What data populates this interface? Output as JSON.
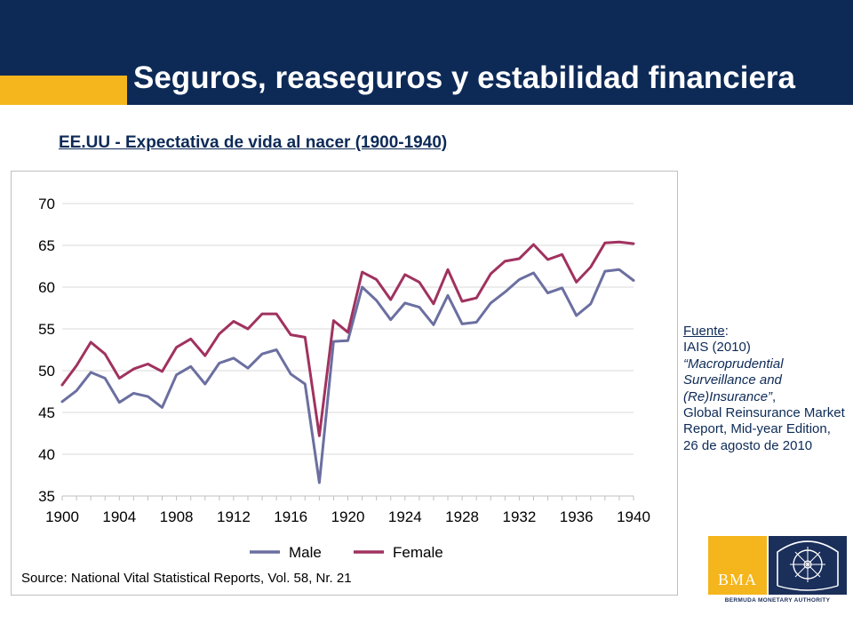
{
  "header": {
    "title": "Seguros, reaseguros y estabilidad financiera",
    "accent_color": "#f5b51c",
    "background_color": "#0d2a57"
  },
  "subtitle": "EE.UU - Expectativa de vida al nacer (1900-1940)",
  "chart_data": {
    "type": "line",
    "title": "",
    "xlabel": "",
    "ylabel": "",
    "x": [
      1900,
      1901,
      1902,
      1903,
      1904,
      1905,
      1906,
      1907,
      1908,
      1909,
      1910,
      1911,
      1912,
      1913,
      1914,
      1915,
      1916,
      1917,
      1918,
      1919,
      1920,
      1921,
      1922,
      1923,
      1924,
      1925,
      1926,
      1927,
      1928,
      1929,
      1930,
      1931,
      1932,
      1933,
      1934,
      1935,
      1936,
      1937,
      1938,
      1939,
      1940
    ],
    "series": [
      {
        "name": "Male",
        "color": "#6b6fa0",
        "values": [
          46.3,
          47.6,
          49.8,
          49.1,
          46.2,
          47.3,
          46.9,
          45.6,
          49.5,
          50.5,
          48.4,
          50.9,
          51.5,
          50.3,
          52.0,
          52.5,
          49.6,
          48.4,
          36.6,
          53.5,
          53.6,
          60.0,
          58.4,
          56.1,
          58.1,
          57.6,
          55.5,
          59.0,
          55.6,
          55.8,
          58.1,
          59.4,
          60.9,
          61.7,
          59.3,
          59.9,
          56.6,
          58.0,
          61.9,
          62.1,
          60.8
        ]
      },
      {
        "name": "Female",
        "color": "#a0325f",
        "values": [
          48.3,
          50.6,
          53.4,
          52.0,
          49.1,
          50.2,
          50.8,
          49.9,
          52.8,
          53.8,
          51.8,
          54.4,
          55.9,
          55.0,
          56.8,
          56.8,
          54.3,
          54.0,
          42.2,
          56.0,
          54.6,
          61.8,
          60.9,
          58.5,
          61.5,
          60.6,
          58.0,
          62.1,
          58.3,
          58.7,
          61.6,
          63.1,
          63.4,
          65.1,
          63.3,
          63.9,
          60.6,
          62.4,
          65.3,
          65.4,
          65.2
        ]
      }
    ],
    "ylim": [
      35,
      70
    ],
    "yticks": [
      "35",
      "40",
      "45",
      "50",
      "55",
      "60",
      "65",
      "70"
    ],
    "xticks": [
      "1900",
      "1904",
      "1908",
      "1912",
      "1916",
      "1920",
      "1924",
      "1928",
      "1932",
      "1936",
      "1940"
    ],
    "grid": true,
    "legend_position": "bottom",
    "source": "Source: National Vital Statistical Reports, Vol. 58, Nr. 21"
  },
  "fuente": {
    "label": "Fuente",
    "colon": ":",
    "line1": "IAIS (2010)",
    "line2": "“Macroprudential Surveillance and (Re)Insurance”",
    "line2_suffix": ",",
    "line3": "Global Reinsurance Market Report, Mid-year Edition,",
    "line4": "26 de agosto de 2010"
  },
  "logo": {
    "text": "BMA",
    "caption": "BERMUDA MONETARY AUTHORITY"
  }
}
